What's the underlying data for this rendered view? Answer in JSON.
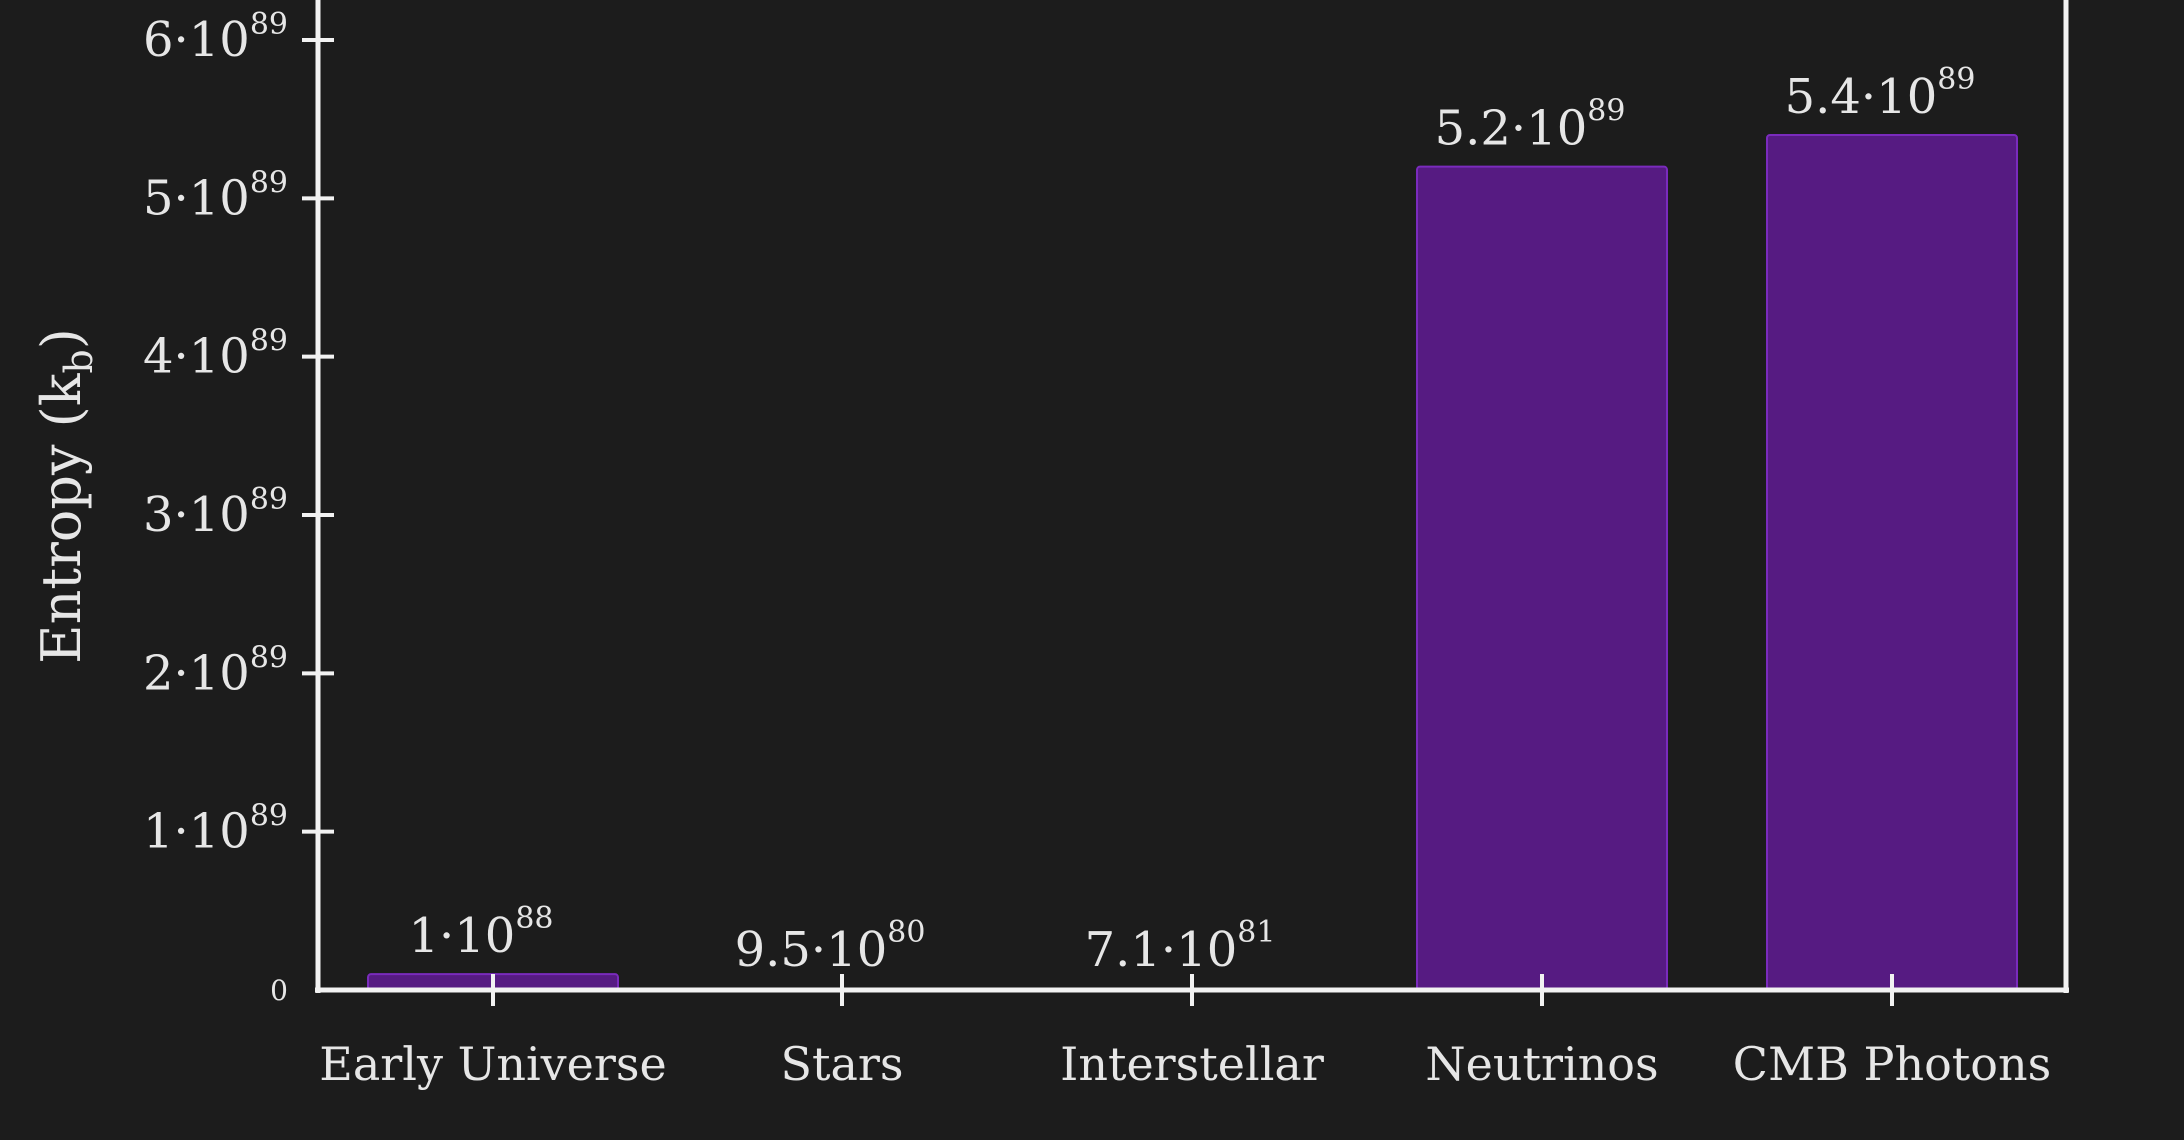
{
  "chart_data": {
    "type": "bar",
    "ylabel": "Entropy (k_b)",
    "ylabel_main": "Entropy (k",
    "ylabel_sub": "b",
    "ylabel_close": ")",
    "ylim": [
      0,
      6e+89
    ],
    "grid": false,
    "categories": [
      "Early Universe",
      "Stars",
      "Interstellar",
      "Neutrinos",
      "CMB Photons"
    ],
    "values": [
      1e+88,
      9.5e+80,
      7.1e+81,
      5.2e+89,
      5.4e+89
    ],
    "value_labels": [
      {
        "mantissa": "1·10",
        "exponent": "88"
      },
      {
        "mantissa": "9.5·10",
        "exponent": "80"
      },
      {
        "mantissa": "7.1·10",
        "exponent": "81"
      },
      {
        "mantissa": "5.2·10",
        "exponent": "89"
      },
      {
        "mantissa": "5.4·10",
        "exponent": "89"
      }
    ],
    "y_ticks": [
      {
        "value": 0,
        "mantissa": "0",
        "exponent": ""
      },
      {
        "value": 1e+89,
        "mantissa": "1·10",
        "exponent": "89"
      },
      {
        "value": 2e+89,
        "mantissa": "2·10",
        "exponent": "89"
      },
      {
        "value": 3e+89,
        "mantissa": "3·10",
        "exponent": "89"
      },
      {
        "value": 4e+89,
        "mantissa": "4·10",
        "exponent": "89"
      },
      {
        "value": 5e+89,
        "mantissa": "5·10",
        "exponent": "89"
      },
      {
        "value": 6e+89,
        "mantissa": "6·10",
        "exponent": "89"
      }
    ],
    "colors": {
      "background": "#1c1c1c",
      "axis": "#f2f2f2",
      "bar_fill": "#561b82",
      "bar_edge": "#7a2bbd",
      "text": "#e6e6e6"
    }
  }
}
